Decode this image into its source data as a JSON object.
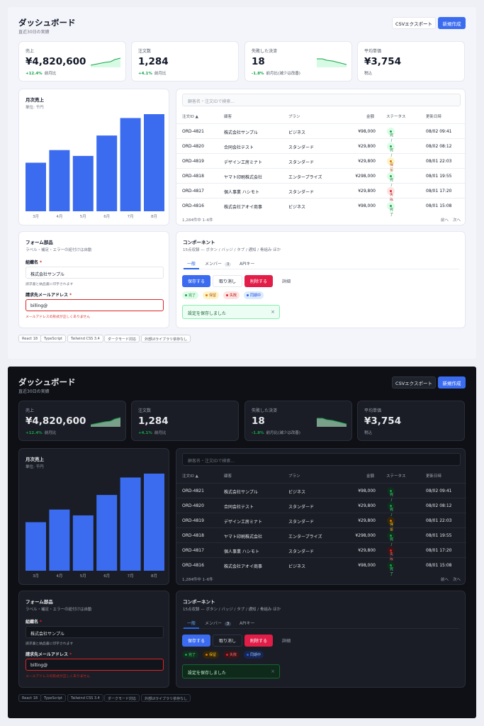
{
  "header": {
    "title": "ダッシュボード",
    "subtitle": "直近30日の実績",
    "export_label": "CSVエクスポート",
    "new_label": "新規作成"
  },
  "stats": [
    {
      "label": "売上",
      "value": "¥4,820,600",
      "delta": "+12.4%",
      "note": "前月比",
      "trend": "up"
    },
    {
      "label": "注文数",
      "value": "1,284",
      "delta": "+4.1%",
      "note": "前月比"
    },
    {
      "label": "失敗した決済",
      "value": "18",
      "delta": "-1.8%",
      "note": "前月比(減少は改善)",
      "trend": "down"
    },
    {
      "label": "平均単価",
      "value": "¥3,754",
      "delta": "",
      "note": "税込"
    }
  ],
  "chart": {
    "title": "月次売上",
    "unit": "単位: 千円"
  },
  "chart_data": {
    "type": "bar",
    "categories": [
      "3月",
      "4月",
      "5月",
      "6月",
      "7月",
      "8月"
    ],
    "values": [
      50,
      63,
      57,
      78,
      96,
      100
    ],
    "ylim": [
      0,
      100
    ],
    "color": "#3b6cf0"
  },
  "table": {
    "search_placeholder": "顧客名・注文IDで検索...",
    "headers": [
      "注文ID ▲",
      "顧客",
      "プラン",
      "金額",
      "ステータス",
      "更新日時"
    ],
    "rows": [
      [
        "ORD-4821",
        "株式会社サンプル",
        "ビジネス",
        "¥98,000",
        "完了",
        "08/02 09:41"
      ],
      [
        "ORD-4820",
        "合同会社テスト",
        "スタンダード",
        "¥29,800",
        "完了",
        "08/02 08:12"
      ],
      [
        "ORD-4819",
        "デザイン工房ミナト",
        "スタンダード",
        "¥29,800",
        "保留",
        "08/01 22:03"
      ],
      [
        "ORD-4818",
        "ヤマト印刷株式会社",
        "エンタープライズ",
        "¥298,000",
        "完了",
        "08/01 19:55"
      ],
      [
        "ORD-4817",
        "個人事業 ハシモト",
        "スタンダード",
        "¥29,800",
        "失敗",
        "08/01 17:20"
      ],
      [
        "ORD-4816",
        "株式会社アオイ商事",
        "ビジネス",
        "¥98,000",
        "完了",
        "08/01 15:08"
      ]
    ],
    "footer": "1,284件中 1–6件",
    "prev": "前へ",
    "next": "次へ"
  },
  "form": {
    "title": "フォーム部品",
    "subtitle": "ラベル・補足・エラーの紐付けは自動",
    "company_label": "組織名",
    "company_value": "株式会社サンプル",
    "company_help": "請求書と納品書に印字されます",
    "email_label": "請求先メールアドレス",
    "email_value": "billing@",
    "email_error": "メールアドレスの形式が正しくありません"
  },
  "components": {
    "title": "コンポーネント",
    "subtitle": "15点収録 — ボタン / バッジ / タブ / 通知 / 骨組み ほか",
    "tabs": [
      {
        "label": "一般"
      },
      {
        "label": "メンバー",
        "count": "3"
      },
      {
        "label": "APIキー"
      }
    ],
    "buttons": {
      "save": "保存する",
      "cancel": "取り消し",
      "delete": "削除する",
      "detail": "詳細"
    },
    "badges": [
      "完了",
      "保留",
      "失敗",
      "同期中"
    ],
    "toast": "設定を保存しました",
    "toast_close": "×"
  },
  "chips": [
    "React 18",
    "TypeScript",
    "Tailwind CSS 3.4",
    "ダークモード対応",
    "外部UIライブラリ依存なし"
  ]
}
